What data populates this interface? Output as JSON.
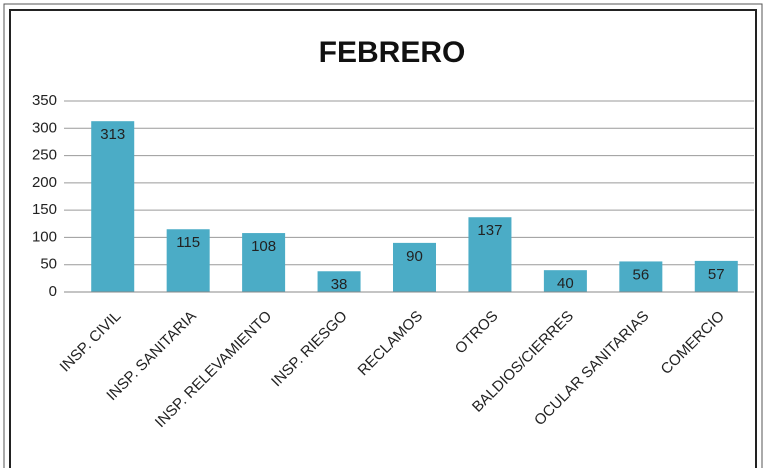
{
  "chart_data": {
    "type": "bar",
    "title": "FEBRERO",
    "categories": [
      "INSP. CIVIL",
      "INSP. SANITARIA",
      "INSP. RELEVAMIENTO",
      "INSP. RIESGO",
      "RECLAMOS",
      "OTROS",
      "BALDIOS/CIERRES",
      "OCULAR SANITARIAS",
      "COMERCIO"
    ],
    "values": [
      313,
      115,
      108,
      38,
      90,
      137,
      40,
      56,
      57
    ],
    "color": "#4bacc6",
    "ylim": [
      0,
      350
    ],
    "yticks": [
      0,
      50,
      100,
      150,
      200,
      250,
      300,
      350
    ],
    "grid": true
  }
}
